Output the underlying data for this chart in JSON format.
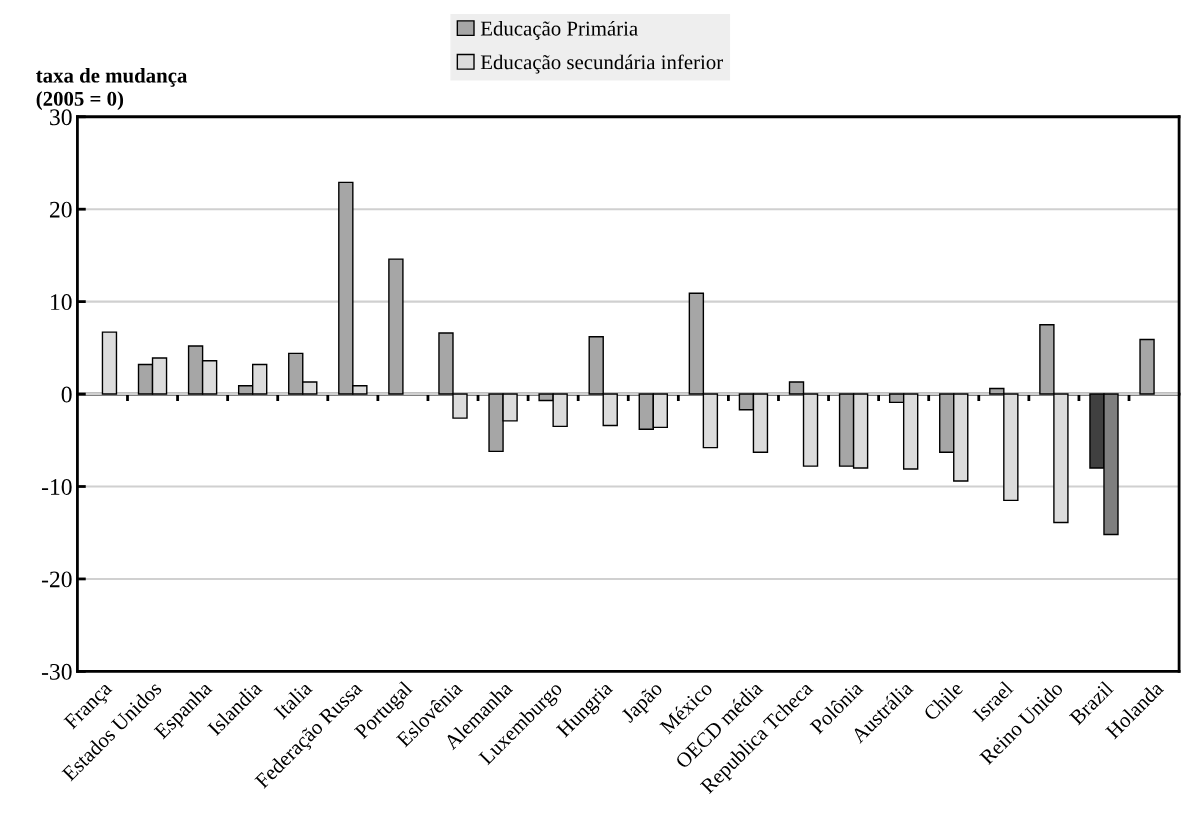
{
  "chart_data": {
    "type": "bar",
    "ylabel": "taxa de mudança\n(2005 = 0)",
    "categories": [
      "França",
      "Estados Unidos",
      "Espanha",
      "Islandia",
      "Italia",
      "Federação Russa",
      "Portugal",
      "Eslovênia",
      "Alemanha",
      "Luxemburgo",
      "Hungria",
      "Japão",
      "México",
      "OECD média",
      "Republica Tcheca",
      "Polônia",
      "Austrália",
      "Chile",
      "Israel",
      "Reino Unido",
      "Brazil",
      "Holanda"
    ],
    "series": [
      {
        "name": "Educação Primária",
        "color": "#a6a6a6",
        "colors": [
          "#a6a6a6",
          "#a6a6a6",
          "#a6a6a6",
          "#a6a6a6",
          "#a6a6a6",
          "#a6a6a6",
          "#a6a6a6",
          "#a6a6a6",
          "#a6a6a6",
          "#a6a6a6",
          "#a6a6a6",
          "#a6a6a6",
          "#a6a6a6",
          "#a6a6a6",
          "#a6a6a6",
          "#a6a6a6",
          "#a6a6a6",
          "#a6a6a6",
          "#a6a6a6",
          "#a6a6a6",
          "#404040",
          "#a6a6a6"
        ],
        "values": [
          null,
          3.2,
          5.2,
          0.9,
          4.4,
          22.9,
          14.6,
          6.6,
          -6.2,
          -0.7,
          6.2,
          -3.8,
          10.9,
          -1.7,
          1.3,
          -7.8,
          -0.9,
          -6.3,
          0.6,
          7.5,
          -8.0,
          5.9
        ]
      },
      {
        "name": "Educação secundária inferior",
        "color": "#dcdcdc",
        "colors": [
          "#dcdcdc",
          "#dcdcdc",
          "#dcdcdc",
          "#dcdcdc",
          "#dcdcdc",
          "#dcdcdc",
          "#dcdcdc",
          "#dcdcdc",
          "#dcdcdc",
          "#dcdcdc",
          "#dcdcdc",
          "#dcdcdc",
          "#dcdcdc",
          "#dcdcdc",
          "#dcdcdc",
          "#dcdcdc",
          "#dcdcdc",
          "#dcdcdc",
          "#dcdcdc",
          "#dcdcdc",
          "#7f7f7f",
          "#dcdcdc"
        ],
        "values": [
          6.7,
          3.9,
          3.6,
          3.2,
          1.3,
          0.9,
          null,
          -2.6,
          -2.9,
          -3.5,
          -3.4,
          -3.6,
          -5.8,
          -6.3,
          -7.8,
          -8.0,
          -8.1,
          -9.4,
          -11.5,
          -13.9,
          -15.2,
          null
        ]
      }
    ],
    "ylim": [
      -30,
      30
    ],
    "yticks": [
      -30,
      -20,
      -10,
      0,
      10,
      20,
      30
    ],
    "grid": "y",
    "legend": "top"
  }
}
